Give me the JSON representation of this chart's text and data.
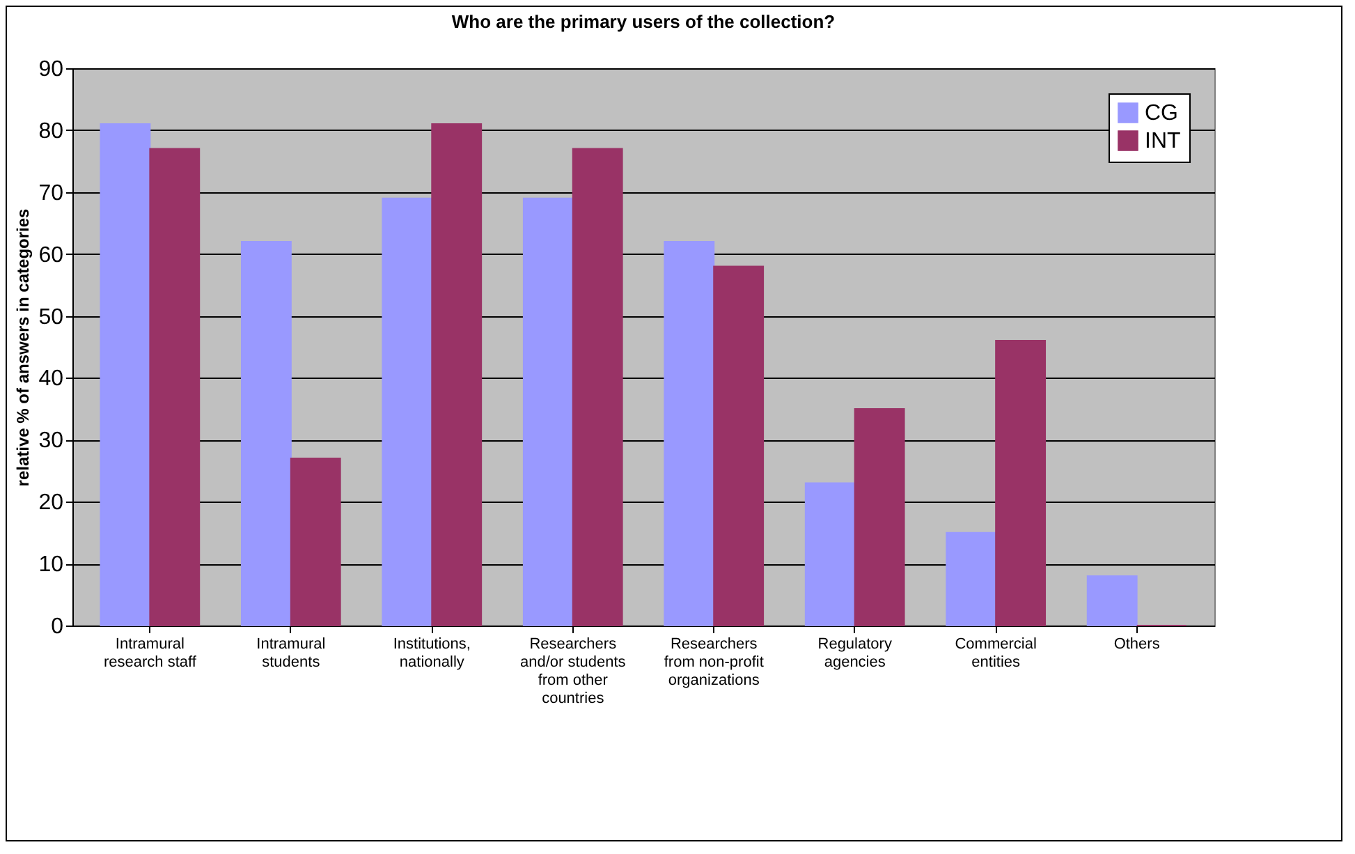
{
  "chart_data": {
    "type": "bar",
    "title": "Who are the primary users of the collection?",
    "ylabel": "relative % of answers in categories",
    "categories": [
      "Intramural research staff",
      "Intramural students",
      "Institutions, nationally",
      "Researchers and/or students from other countries",
      "Researchers from non-profit organizations",
      "Regulatory agencies",
      "Commercial entities",
      "Others"
    ],
    "series": [
      {
        "name": "CG",
        "color": "#9999ff",
        "values": [
          81,
          62,
          69,
          69,
          62,
          23,
          15,
          8
        ]
      },
      {
        "name": "INT",
        "color": "#993366",
        "values": [
          77,
          27,
          81,
          77,
          58,
          35,
          46,
          0
        ]
      }
    ],
    "ylim": [
      0,
      90
    ],
    "yticks": [
      0,
      10,
      20,
      30,
      40,
      50,
      60,
      70,
      80,
      90
    ],
    "grid": "y",
    "legend": "top right"
  }
}
